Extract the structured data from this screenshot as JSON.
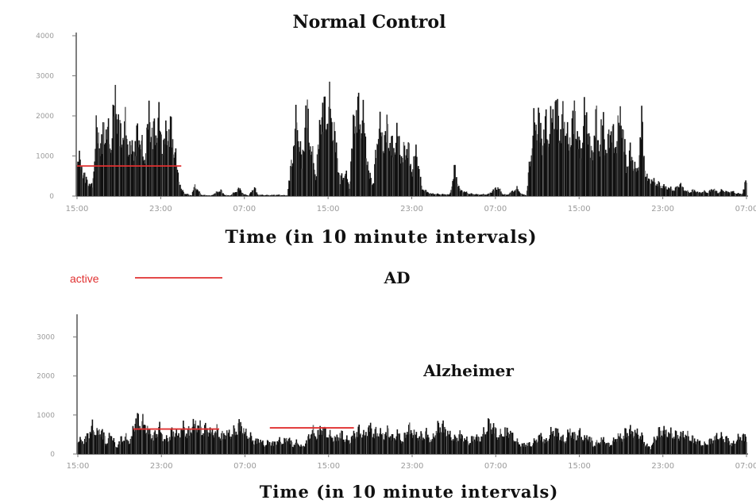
{
  "chart_data": [
    {
      "type": "bar",
      "title": "Normal Control",
      "xlabel": "Time (in 10 minute intervals)",
      "ylabel": "",
      "ylim": [
        0,
        4000
      ],
      "yticks": [
        "0",
        "1000",
        "2000",
        "3000",
        "4000"
      ],
      "xticks": [
        "15:00",
        "23:00",
        "07:00",
        "15:00",
        "23:00",
        "07:00",
        "15:00",
        "23:00",
        "07:00"
      ],
      "grid": false,
      "series_color": "#111111",
      "activity_envelope": [
        [
          0,
          1400
        ],
        [
          0.5,
          900
        ],
        [
          1,
          500
        ],
        [
          1.6,
          300
        ],
        [
          2,
          2100
        ],
        [
          2.5,
          1700
        ],
        [
          3,
          2400
        ],
        [
          3.5,
          1600
        ],
        [
          4,
          3200
        ],
        [
          4.5,
          2000
        ],
        [
          5,
          2300
        ],
        [
          5.5,
          1500
        ],
        [
          6,
          1600
        ],
        [
          6.5,
          2200
        ],
        [
          7,
          1100
        ],
        [
          7.5,
          2600
        ],
        [
          8,
          2000
        ],
        [
          8.5,
          2500
        ],
        [
          9,
          1600
        ],
        [
          9.5,
          2300
        ],
        [
          10,
          2000
        ],
        [
          10.5,
          800
        ],
        [
          10.9,
          200
        ],
        [
          11.3,
          80
        ],
        [
          12,
          20
        ],
        [
          12.3,
          350
        ],
        [
          12.6,
          200
        ],
        [
          13,
          40
        ],
        [
          14,
          10
        ],
        [
          15,
          200
        ],
        [
          15.4,
          40
        ],
        [
          16,
          10
        ],
        [
          17,
          250
        ],
        [
          17.4,
          60
        ],
        [
          18,
          20
        ],
        [
          18.5,
          300
        ],
        [
          18.9,
          40
        ],
        [
          20,
          30
        ],
        [
          21,
          40
        ],
        [
          22,
          20
        ],
        [
          23,
          2600
        ],
        [
          23.5,
          1000
        ],
        [
          24,
          2900
        ],
        [
          24.5,
          1500
        ],
        [
          25,
          600
        ],
        [
          25.5,
          2800
        ],
        [
          26,
          2700
        ],
        [
          26.5,
          2900
        ],
        [
          27,
          1800
        ],
        [
          27.5,
          500
        ],
        [
          28,
          800
        ],
        [
          28.5,
          300
        ],
        [
          29,
          2800
        ],
        [
          29.5,
          2700
        ],
        [
          30,
          2400
        ],
        [
          30.5,
          700
        ],
        [
          31,
          400
        ],
        [
          31.5,
          2400
        ],
        [
          32,
          1800
        ],
        [
          32.5,
          2200
        ],
        [
          33,
          1500
        ],
        [
          33.5,
          2000
        ],
        [
          34,
          1200
        ],
        [
          34.5,
          1800
        ],
        [
          35,
          800
        ],
        [
          35.5,
          1500
        ],
        [
          36,
          300
        ],
        [
          36.5,
          150
        ],
        [
          37,
          80
        ],
        [
          38,
          60
        ],
        [
          39,
          50
        ],
        [
          39.5,
          900
        ],
        [
          40,
          200
        ],
        [
          41,
          80
        ],
        [
          42,
          50
        ],
        [
          43,
          60
        ],
        [
          44,
          300
        ],
        [
          44.5,
          60
        ],
        [
          45,
          40
        ],
        [
          46,
          250
        ],
        [
          46.5,
          60
        ],
        [
          47,
          30
        ],
        [
          47.4,
          1300
        ],
        [
          47.8,
          2300
        ],
        [
          48.2,
          2600
        ],
        [
          48.6,
          1800
        ],
        [
          49,
          2300
        ],
        [
          49.4,
          2000
        ],
        [
          49.8,
          2900
        ],
        [
          50.2,
          2700
        ],
        [
          50.6,
          2100
        ],
        [
          51,
          2800
        ],
        [
          51.4,
          1500
        ],
        [
          51.8,
          2500
        ],
        [
          52.2,
          2600
        ],
        [
          52.6,
          1300
        ],
        [
          53,
          2600
        ],
        [
          53.4,
          2400
        ],
        [
          53.8,
          1200
        ],
        [
          54.2,
          2600
        ],
        [
          54.6,
          1600
        ],
        [
          55,
          2500
        ],
        [
          55.4,
          1200
        ],
        [
          55.8,
          2600
        ],
        [
          56.2,
          1500
        ],
        [
          56.6,
          2300
        ],
        [
          57,
          2600
        ],
        [
          57.4,
          1000
        ],
        [
          57.8,
          1400
        ],
        [
          58.2,
          1100
        ],
        [
          58.6,
          700
        ],
        [
          59,
          2500
        ],
        [
          59.5,
          600
        ],
        [
          60,
          500
        ],
        [
          60.5,
          450
        ],
        [
          61,
          350
        ],
        [
          61.5,
          300
        ],
        [
          62,
          250
        ],
        [
          62.5,
          200
        ],
        [
          63,
          400
        ],
        [
          63.5,
          200
        ],
        [
          64,
          120
        ],
        [
          64.5,
          200
        ],
        [
          65,
          100
        ],
        [
          65.5,
          150
        ],
        [
          66,
          120
        ],
        [
          66.5,
          250
        ],
        [
          67,
          100
        ],
        [
          67.5,
          200
        ],
        [
          68,
          120
        ],
        [
          68.5,
          150
        ],
        [
          69,
          80
        ],
        [
          69.6,
          80
        ],
        [
          70,
          600
        ],
        [
          70.3,
          90
        ],
        [
          70.9,
          90
        ]
      ],
      "annotation_line": {
        "label": "",
        "value": 750,
        "x_start": 0.0,
        "x_end": 10.9
      }
    },
    {
      "type": "bar",
      "title": "AD",
      "subtitle": "Alzheimer",
      "xlabel": "Time (in 10 minute intervals)",
      "ylabel": "",
      "ylim": [
        0,
        3500
      ],
      "yticks": [
        "0",
        "1000",
        "2000",
        "3000"
      ],
      "xticks": [
        "15:00",
        "23:00",
        "07:00",
        "15:00",
        "23:00",
        "07:00",
        "15:00",
        "23:00",
        "07:00"
      ],
      "grid": false,
      "series_color": "#111111",
      "activity_envelope": [
        [
          0,
          500
        ],
        [
          0.5,
          400
        ],
        [
          1,
          600
        ],
        [
          1.5,
          900
        ],
        [
          2,
          700
        ],
        [
          2.5,
          800
        ],
        [
          3,
          350
        ],
        [
          3.5,
          700
        ],
        [
          4,
          200
        ],
        [
          4.5,
          500
        ],
        [
          5,
          550
        ],
        [
          5.5,
          400
        ],
        [
          6,
          1150
        ],
        [
          6.5,
          1100
        ],
        [
          7,
          1000
        ],
        [
          7.5,
          700
        ],
        [
          8,
          600
        ],
        [
          8.5,
          900
        ],
        [
          9,
          450
        ],
        [
          9.5,
          550
        ],
        [
          10,
          800
        ],
        [
          10.5,
          600
        ],
        [
          11,
          900
        ],
        [
          11.5,
          700
        ],
        [
          12,
          950
        ],
        [
          12.5,
          1000
        ],
        [
          13,
          800
        ],
        [
          13.5,
          850
        ],
        [
          14,
          700
        ],
        [
          14.5,
          800
        ],
        [
          15,
          600
        ],
        [
          15.5,
          700
        ],
        [
          16,
          650
        ],
        [
          16.5,
          800
        ],
        [
          17,
          1000
        ],
        [
          17.5,
          700
        ],
        [
          18,
          600
        ],
        [
          18.5,
          400
        ],
        [
          19,
          500
        ],
        [
          19.5,
          300
        ],
        [
          20,
          400
        ],
        [
          20.5,
          350
        ],
        [
          21,
          450
        ],
        [
          21.5,
          400
        ],
        [
          22,
          550
        ],
        [
          22.5,
          300
        ],
        [
          23,
          400
        ],
        [
          23.5,
          200
        ],
        [
          24,
          450
        ],
        [
          24.5,
          800
        ],
        [
          25,
          600
        ],
        [
          25.5,
          900
        ],
        [
          26,
          700
        ],
        [
          26.5,
          600
        ],
        [
          27,
          500
        ],
        [
          27.5,
          700
        ],
        [
          28,
          500
        ],
        [
          28.5,
          450
        ],
        [
          29,
          700
        ],
        [
          29.5,
          800
        ],
        [
          30,
          600
        ],
        [
          30.5,
          900
        ],
        [
          31,
          700
        ],
        [
          31.5,
          750
        ],
        [
          32,
          600
        ],
        [
          32.5,
          800
        ],
        [
          33,
          500
        ],
        [
          33.5,
          700
        ],
        [
          34,
          400
        ],
        [
          34.5,
          900
        ],
        [
          35,
          750
        ],
        [
          35.5,
          600
        ],
        [
          36,
          600
        ],
        [
          36.5,
          700
        ],
        [
          37,
          400
        ],
        [
          37.5,
          800
        ],
        [
          38,
          1000
        ],
        [
          38.5,
          800
        ],
        [
          39,
          600
        ],
        [
          39.5,
          500
        ],
        [
          40,
          650
        ],
        [
          40.5,
          500
        ],
        [
          41,
          400
        ],
        [
          41.5,
          600
        ],
        [
          42,
          500
        ],
        [
          42.5,
          700
        ],
        [
          43,
          1000
        ],
        [
          43.5,
          900
        ],
        [
          44,
          600
        ],
        [
          44.5,
          700
        ],
        [
          45,
          800
        ],
        [
          45.5,
          600
        ],
        [
          46,
          400
        ],
        [
          46.5,
          300
        ],
        [
          47,
          350
        ],
        [
          47.5,
          300
        ],
        [
          48,
          500
        ],
        [
          48.5,
          600
        ],
        [
          49,
          400
        ],
        [
          49.5,
          700
        ],
        [
          50,
          800
        ],
        [
          50.5,
          600
        ],
        [
          51,
          450
        ],
        [
          51.5,
          800
        ],
        [
          52,
          600
        ],
        [
          52.5,
          700
        ],
        [
          53,
          500
        ],
        [
          53.5,
          600
        ],
        [
          54,
          300
        ],
        [
          54.5,
          400
        ],
        [
          55,
          500
        ],
        [
          55.5,
          300
        ],
        [
          56,
          400
        ],
        [
          56.5,
          600
        ],
        [
          57,
          550
        ],
        [
          57.5,
          800
        ],
        [
          58,
          750
        ],
        [
          58.5,
          700
        ],
        [
          59,
          600
        ],
        [
          59.5,
          300
        ],
        [
          60,
          200
        ],
        [
          60.5,
          600
        ],
        [
          61,
          800
        ],
        [
          61.5,
          750
        ],
        [
          62,
          700
        ],
        [
          62.5,
          650
        ],
        [
          63,
          600
        ],
        [
          63.5,
          700
        ],
        [
          64,
          550
        ],
        [
          64.5,
          500
        ],
        [
          65,
          400
        ],
        [
          65.5,
          300
        ],
        [
          66,
          400
        ],
        [
          66.5,
          500
        ],
        [
          67,
          600
        ],
        [
          67.5,
          550
        ],
        [
          68,
          500
        ],
        [
          68.5,
          300
        ],
        [
          69,
          500
        ],
        [
          69.5,
          600
        ],
        [
          70,
          550
        ],
        [
          70.5,
          450
        ],
        [
          70.9,
          550
        ]
      ],
      "annotation_lines": [
        {
          "label": "active",
          "value": 640,
          "x_start": 5.8,
          "x_end": 14.8
        },
        {
          "label": "active",
          "value": 670,
          "x_start": 20.1,
          "x_end": 28.9
        }
      ]
    }
  ],
  "legend": {
    "active_label": "active",
    "active_color": "#e03030"
  }
}
